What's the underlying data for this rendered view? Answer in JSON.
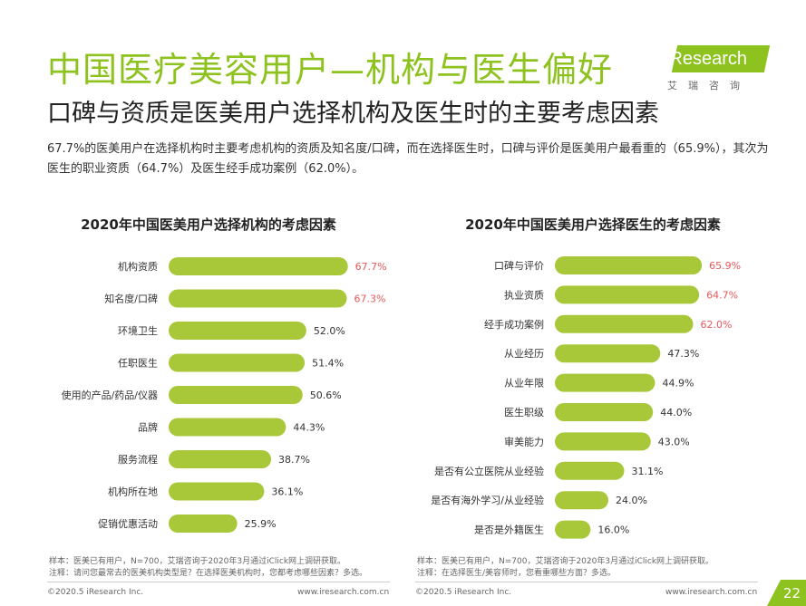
{
  "header": {
    "title": "中国医疗美容用户—机构与医生偏好",
    "subtitle": "口碑与资质是医美用户选择机构及医生时的主要考虑因素"
  },
  "logo": {
    "brand_i": "i",
    "brand_rest": "Research",
    "cn": "艾瑞咨询"
  },
  "summary": "67.7%的医美用户在选择机构时主要考虑机构的资质及知名度/口碑，而在选择医生时，口碑与评价是医美用户最看重的（65.9%），其次为医生的职业资质（64.7%）及医生经手成功案例（62.0%）。",
  "colors": {
    "bar": "#a8c83a",
    "highlight": "#e8585a",
    "normal": "#333333",
    "accent": "#8dc21f"
  },
  "chart_data": [
    {
      "type": "bar",
      "orientation": "horizontal",
      "title": "2020年中国医美用户选择机构的考虑因素",
      "categories": [
        "机构资质",
        "知名度/口碑",
        "环境卫生",
        "任职医生",
        "使用的产品/药品/仪器",
        "品牌",
        "服务流程",
        "机构所在地",
        "促销优惠活动"
      ],
      "values": [
        67.7,
        67.3,
        52.0,
        51.4,
        50.6,
        44.3,
        38.7,
        36.1,
        25.9
      ],
      "labels": [
        "67.7%",
        "67.3%",
        "52.0%",
        "51.4%",
        "50.6%",
        "44.3%",
        "38.7%",
        "36.1%",
        "25.9%"
      ],
      "highlight_count": 2,
      "xlim": [
        0,
        100
      ]
    },
    {
      "type": "bar",
      "orientation": "horizontal",
      "title": "2020年中国医美用户选择医生的考虑因素",
      "categories": [
        "口碑与评价",
        "执业资质",
        "经手成功案例",
        "从业经历",
        "从业年限",
        "医生职级",
        "审美能力",
        "是否有公立医院从业经验",
        "是否有海外学习/从业经验",
        "是否是外籍医生"
      ],
      "values": [
        65.9,
        64.7,
        62.0,
        47.3,
        44.9,
        44.0,
        43.0,
        31.1,
        24.0,
        16.0
      ],
      "labels": [
        "65.9%",
        "64.7%",
        "62.0%",
        "47.3%",
        "44.9%",
        "44.0%",
        "43.0%",
        "31.1%",
        "24.0%",
        "16.0%"
      ],
      "highlight_count": 3,
      "xlim": [
        0,
        100
      ]
    }
  ],
  "notes": {
    "left_sample": "样本：医美已有用户，N=700，艾瑞咨询于2020年3月通过iClick网上调研获取。",
    "left_note": "注释：请问您最常去的医美机构类型是？在选择医美机构时，您都考虑哪些因素？多选。",
    "right_sample": "样本：医美已有用户，N=700，艾瑞咨询于2020年3月通过iClick网上调研获取。",
    "right_note": "注释：在选择医生/美容师时，您看重哪些方面？多选。"
  },
  "footer": {
    "left_copyright": "©2020.5 iResearch Inc.",
    "left_url": "www.iresearch.com.cn",
    "right_copyright": "©2020.5 iResearch Inc.",
    "right_url": "www.iresearch.com.cn",
    "page": "22"
  }
}
